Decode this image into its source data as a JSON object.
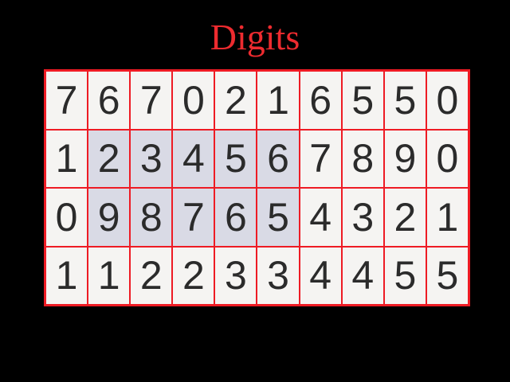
{
  "title": "Digits",
  "colors": {
    "background": "#000000",
    "title_text": "#ee2b2f",
    "table_border": "#ee1b24",
    "cell_background": "#f5f4f2",
    "cell_highlight_background": "#d9dae5",
    "digit_text": "#2b2b2b"
  },
  "grid": {
    "rows": [
      {
        "values": [
          "7",
          "6",
          "7",
          "0",
          "2",
          "1",
          "6",
          "5",
          "5",
          "0"
        ],
        "highlight_cols": []
      },
      {
        "values": [
          "1",
          "2",
          "3",
          "4",
          "5",
          "6",
          "7",
          "8",
          "9",
          "0"
        ],
        "highlight_cols": [
          1,
          2,
          3,
          4,
          5
        ]
      },
      {
        "values": [
          "0",
          "9",
          "8",
          "7",
          "6",
          "5",
          "4",
          "3",
          "2",
          "1"
        ],
        "highlight_cols": [
          1,
          2,
          3,
          4,
          5
        ]
      },
      {
        "values": [
          "1",
          "1",
          "2",
          "2",
          "3",
          "3",
          "4",
          "4",
          "5",
          "5"
        ],
        "highlight_cols": []
      }
    ]
  }
}
